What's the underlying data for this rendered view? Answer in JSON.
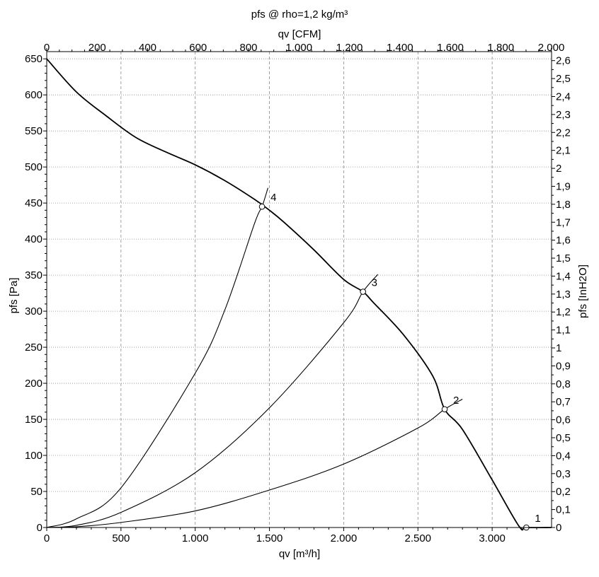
{
  "chart_data": {
    "type": "line",
    "title": "pfs @ rho=1,2 kg/m³",
    "xlabel": "qv [m³/h]",
    "ylabel": "pfs [Pa]",
    "x2label": "qv [CFM]",
    "y2label": "pfs [InH2O]",
    "xlim": [
      0,
      3400
    ],
    "ylim": [
      0,
      660
    ],
    "x2lim": [
      0,
      2001.2
    ],
    "y2lim": [
      0,
      2.65
    ],
    "grid": true,
    "grid_style": "dashed",
    "x_ticks": [
      {
        "value": 0,
        "label": "0"
      },
      {
        "value": 500,
        "label": "500"
      },
      {
        "value": 1000,
        "label": "1.000"
      },
      {
        "value": 1500,
        "label": "1.500"
      },
      {
        "value": 2000,
        "label": "2.000"
      },
      {
        "value": 2500,
        "label": "2.500"
      },
      {
        "value": 3000,
        "label": "3.000"
      }
    ],
    "y_ticks": [
      {
        "value": 0,
        "label": "0"
      },
      {
        "value": 50,
        "label": "50"
      },
      {
        "value": 100,
        "label": "100"
      },
      {
        "value": 150,
        "label": "150"
      },
      {
        "value": 200,
        "label": "200"
      },
      {
        "value": 250,
        "label": "250"
      },
      {
        "value": 300,
        "label": "300"
      },
      {
        "value": 350,
        "label": "350"
      },
      {
        "value": 400,
        "label": "400"
      },
      {
        "value": 450,
        "label": "450"
      },
      {
        "value": 500,
        "label": "500"
      },
      {
        "value": 550,
        "label": "550"
      },
      {
        "value": 600,
        "label": "600"
      },
      {
        "value": 650,
        "label": "650"
      }
    ],
    "x2_ticks": [
      {
        "value": 0,
        "label": "0"
      },
      {
        "value": 200,
        "label": "200"
      },
      {
        "value": 400,
        "label": "400"
      },
      {
        "value": 600,
        "label": "600"
      },
      {
        "value": 800,
        "label": "800"
      },
      {
        "value": 1000,
        "label": "1.000"
      },
      {
        "value": 1200,
        "label": "1.200"
      },
      {
        "value": 1400,
        "label": "1.400"
      },
      {
        "value": 1600,
        "label": "1.600"
      },
      {
        "value": 1800,
        "label": "1.800"
      },
      {
        "value": 2000,
        "label": "2.000"
      }
    ],
    "y2_ticks": [
      {
        "value": 0,
        "label": "0"
      },
      {
        "value": 0.1,
        "label": "0,1"
      },
      {
        "value": 0.2,
        "label": "0,2"
      },
      {
        "value": 0.3,
        "label": "0,3"
      },
      {
        "value": 0.4,
        "label": "0,4"
      },
      {
        "value": 0.5,
        "label": "0,5"
      },
      {
        "value": 0.6,
        "label": "0,6"
      },
      {
        "value": 0.7,
        "label": "0,7"
      },
      {
        "value": 0.8,
        "label": "0,8"
      },
      {
        "value": 0.9,
        "label": "0,9"
      },
      {
        "value": 1.0,
        "label": "1"
      },
      {
        "value": 1.1,
        "label": "1,1"
      },
      {
        "value": 1.2,
        "label": "1,2"
      },
      {
        "value": 1.3,
        "label": "1,3"
      },
      {
        "value": 1.4,
        "label": "1,4"
      },
      {
        "value": 1.5,
        "label": "1,5"
      },
      {
        "value": 1.6,
        "label": "1,6"
      },
      {
        "value": 1.7,
        "label": "1,7"
      },
      {
        "value": 1.8,
        "label": "1,8"
      },
      {
        "value": 1.9,
        "label": "1,9"
      },
      {
        "value": 2.0,
        "label": "2"
      },
      {
        "value": 2.1,
        "label": "2,1"
      },
      {
        "value": 2.2,
        "label": "2,2"
      },
      {
        "value": 2.3,
        "label": "2,3"
      },
      {
        "value": 2.4,
        "label": "2,4"
      },
      {
        "value": 2.5,
        "label": "2,5"
      },
      {
        "value": 2.6,
        "label": "2,6"
      }
    ],
    "series": [
      {
        "x": [
          0,
          200,
          400,
          600,
          800,
          1000,
          1200,
          1400,
          1500,
          1600,
          1800,
          2000,
          2130,
          2200,
          2400,
          2600,
          2680,
          2800,
          3000,
          3180,
          3230,
          3400
        ],
        "y": [
          650,
          604,
          571,
          541,
          521,
          503,
          481,
          455,
          440,
          423,
          385,
          344,
          327,
          312,
          268,
          210,
          164,
          136,
          66,
          2,
          0,
          0
        ]
      },
      {
        "x": [
          0,
          200,
          500,
          1000,
          1500,
          2000,
          2500,
          2680,
          2800
        ],
        "y": [
          0,
          1,
          7,
          23,
          52,
          88,
          138,
          164,
          178
        ]
      },
      {
        "x": [
          0,
          200,
          500,
          1000,
          1500,
          2000,
          2130,
          2230
        ],
        "y": [
          0,
          3,
          21,
          76,
          166,
          284,
          327,
          351
        ]
      },
      {
        "x": [
          0,
          200,
          500,
          1000,
          1200,
          1400,
          1450,
          1490
        ],
        "y": [
          0,
          12,
          55,
          214,
          302,
          422,
          445,
          471
        ]
      }
    ],
    "points": [
      {
        "label": "1",
        "x": 3230,
        "y": 0
      },
      {
        "label": "2",
        "x": 2680,
        "y": 164
      },
      {
        "label": "3",
        "x": 2130,
        "y": 327
      },
      {
        "label": "4",
        "x": 1450,
        "y": 445
      }
    ]
  }
}
